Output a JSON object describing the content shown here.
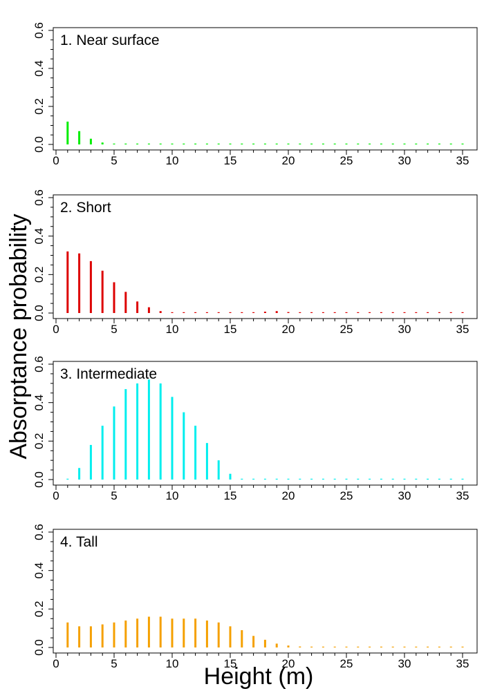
{
  "figure": {
    "xlabel": "Height (m)",
    "ylabel": "Absorptance probability"
  },
  "chart_data": [
    {
      "type": "bar",
      "title": "1. Near surface",
      "color": "#00ee00",
      "x": [
        1,
        2,
        3,
        4,
        5,
        6,
        7,
        8,
        9,
        10,
        11,
        12,
        13,
        14,
        15,
        16,
        17,
        18,
        19,
        20,
        21,
        22,
        23,
        24,
        25,
        26,
        27,
        28,
        29,
        30,
        31,
        32,
        33,
        34,
        35
      ],
      "values": [
        0.12,
        0.07,
        0.03,
        0.01,
        0,
        0,
        0,
        0,
        0,
        0,
        0,
        0,
        0,
        0,
        0,
        0,
        0,
        0,
        0,
        0,
        0,
        0,
        0,
        0,
        0,
        0,
        0,
        0,
        0,
        0,
        0,
        0,
        0,
        0,
        0
      ],
      "xlim": [
        0,
        36
      ],
      "ylim": [
        0,
        0.6
      ],
      "xticks": [
        0,
        5,
        10,
        15,
        20,
        25,
        30,
        35
      ],
      "yticks": [
        0.0,
        0.2,
        0.4,
        0.6
      ],
      "xtick_labels": [
        "0",
        "5",
        "10",
        "15",
        "20",
        "25",
        "30",
        "35"
      ],
      "ytick_labels": [
        "0.0",
        "0.2",
        "0.4",
        "0.6"
      ]
    },
    {
      "type": "bar",
      "title": "2. Short",
      "color": "#dd0000",
      "x": [
        1,
        2,
        3,
        4,
        5,
        6,
        7,
        8,
        9,
        10,
        11,
        12,
        13,
        14,
        15,
        16,
        17,
        18,
        19,
        20,
        21,
        22,
        23,
        24,
        25,
        26,
        27,
        28,
        29,
        30,
        31,
        32,
        33,
        34,
        35
      ],
      "values": [
        0.32,
        0.31,
        0.27,
        0.22,
        0.16,
        0.11,
        0.06,
        0.03,
        0.01,
        0,
        0,
        0,
        0,
        0,
        0,
        0,
        0.003,
        0.007,
        0.01,
        0.005,
        0,
        0,
        0,
        0,
        0,
        0,
        0,
        0,
        0,
        0,
        0,
        0,
        0,
        0,
        0
      ],
      "xlim": [
        0,
        36
      ],
      "ylim": [
        0,
        0.6
      ],
      "xticks": [
        0,
        5,
        10,
        15,
        20,
        25,
        30,
        35
      ],
      "yticks": [
        0.0,
        0.2,
        0.4,
        0.6
      ],
      "xtick_labels": [
        "0",
        "5",
        "10",
        "15",
        "20",
        "25",
        "30",
        "35"
      ],
      "ytick_labels": [
        "0.0",
        "0.2",
        "0.4",
        "0.6"
      ]
    },
    {
      "type": "bar",
      "title": "3. Intermediate",
      "color": "#00eeee",
      "x": [
        1,
        2,
        3,
        4,
        5,
        6,
        7,
        8,
        9,
        10,
        11,
        12,
        13,
        14,
        15,
        16,
        17,
        18,
        19,
        20,
        21,
        22,
        23,
        24,
        25,
        26,
        27,
        28,
        29,
        30,
        31,
        32,
        33,
        34,
        35
      ],
      "values": [
        0,
        0.06,
        0.18,
        0.28,
        0.38,
        0.47,
        0.5,
        0.52,
        0.5,
        0.43,
        0.35,
        0.28,
        0.19,
        0.1,
        0.03,
        0,
        0,
        0,
        0,
        0,
        0,
        0,
        0,
        0,
        0,
        0,
        0,
        0,
        0,
        0,
        0,
        0,
        0,
        0,
        0
      ],
      "xlim": [
        0,
        36
      ],
      "ylim": [
        0,
        0.6
      ],
      "xticks": [
        0,
        5,
        10,
        15,
        20,
        25,
        30,
        35
      ],
      "yticks": [
        0.0,
        0.2,
        0.4,
        0.6
      ],
      "xtick_labels": [
        "0",
        "5",
        "10",
        "15",
        "20",
        "25",
        "30",
        "35"
      ],
      "ytick_labels": [
        "0.0",
        "0.2",
        "0.4",
        "0.6"
      ]
    },
    {
      "type": "bar",
      "title": "4. Tall",
      "color": "#f5a000",
      "x": [
        1,
        2,
        3,
        4,
        5,
        6,
        7,
        8,
        9,
        10,
        11,
        12,
        13,
        14,
        15,
        16,
        17,
        18,
        19,
        20,
        21,
        22,
        23,
        24,
        25,
        26,
        27,
        28,
        29,
        30,
        31,
        32,
        33,
        34,
        35
      ],
      "values": [
        0.13,
        0.11,
        0.11,
        0.12,
        0.13,
        0.14,
        0.15,
        0.16,
        0.16,
        0.15,
        0.15,
        0.15,
        0.14,
        0.13,
        0.11,
        0.09,
        0.06,
        0.04,
        0.02,
        0.01,
        0.005,
        0.003,
        0,
        0,
        0,
        0,
        0,
        0,
        0,
        0,
        0,
        0,
        0,
        0,
        0
      ],
      "xlim": [
        0,
        36
      ],
      "ylim": [
        0,
        0.6
      ],
      "xticks": [
        0,
        5,
        10,
        15,
        20,
        25,
        30,
        35
      ],
      "yticks": [
        0.0,
        0.2,
        0.4,
        0.6
      ],
      "xtick_labels": [
        "0",
        "5",
        "10",
        "15",
        "20",
        "25",
        "30",
        "35"
      ],
      "ytick_labels": [
        "0.0",
        "0.2",
        "0.4",
        "0.6"
      ]
    }
  ]
}
